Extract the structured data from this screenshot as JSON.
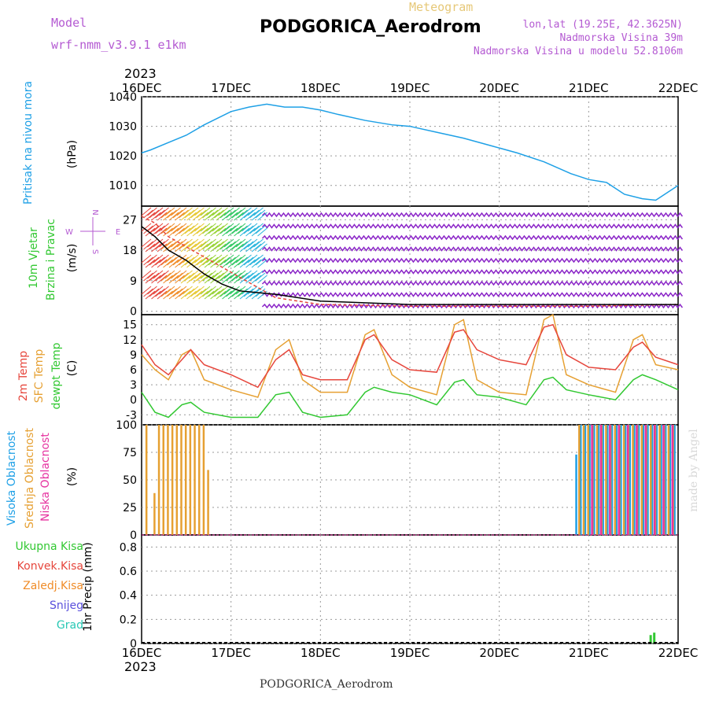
{
  "header": {
    "model_label": "Model",
    "model_name": "wrf-nmm_v3.9.1 e1km",
    "meteogram_label": "Meteogram",
    "station": "PODGORICA_Aerodrom",
    "lonlat": "lon,lat (19.25E, 42.3625N)",
    "elevation": "Nadmorska Visina 39m",
    "model_elevation": "Nadmorska Visina u modelu 52.8106m",
    "year_top": "2023",
    "year_bottom": "2023",
    "footer_station": "PODGORICA_Aerodrom",
    "credit": "made by Angel"
  },
  "time_axis": {
    "labels": [
      "16DEC",
      "17DEC",
      "18DEC",
      "19DEC",
      "20DEC",
      "21DEC",
      "22DEC"
    ]
  },
  "panels": {
    "pressure": {
      "title": "Pritisak na nivou mora",
      "unit": "(hPa)",
      "ticks": [
        "1010",
        "1020",
        "1030",
        "1040"
      ]
    },
    "wind": {
      "title1": "10m Vjetar",
      "title2": "Brzina i Pravac",
      "unit": "(m/s)",
      "ticks": [
        "0",
        "9",
        "18",
        "27"
      ],
      "compass": {
        "n": "N",
        "s": "S",
        "e": "E",
        "w": "W"
      }
    },
    "temp": {
      "title1": "2m Temp",
      "title2": "SFC Temp",
      "title3": "dewpt Temp",
      "unit": "(C)",
      "ticks": [
        "-3",
        "0",
        "3",
        "6",
        "9",
        "12",
        "15"
      ]
    },
    "cloud": {
      "title1": "Visoka Oblacnost",
      "title2": "Srednja Oblacnost",
      "title3": "Niska Oblacnost",
      "unit": "(%)",
      "ticks": [
        "0",
        "25",
        "50",
        "75",
        "100"
      ]
    },
    "precip": {
      "legend": [
        "Ukupna Kisa",
        "Konvek.Kisa",
        "Zaledj.Kisa",
        "Snijeg",
        "Grad"
      ],
      "unit": "1hr Precip (mm)",
      "ticks": [
        "0",
        "0.2",
        "0.4",
        "0.6",
        "0.8"
      ]
    }
  },
  "colors": {
    "pressure": "#1ea0e6",
    "temp2m": "#e6463c",
    "sfc": "#e6a032",
    "dew": "#32c832",
    "high": "#1ea0e6",
    "mid": "#e6a032",
    "low": "#e632a0",
    "rain": "#32c832",
    "conv": "#e6463c",
    "frz": "#f08c28",
    "snow": "#5a50dc",
    "hail": "#28c8b4",
    "header_purple": "#b45ad2",
    "meteogram": "#e6c878"
  },
  "chart_data": [
    {
      "type": "line",
      "panel": "pressure",
      "ylabel": "(hPa)",
      "ylim": [
        1003,
        1040
      ],
      "x_days": [
        0,
        0.1,
        0.3,
        0.5,
        0.7,
        1.0,
        1.2,
        1.4,
        1.6,
        1.8,
        2.0,
        2.2,
        2.5,
        2.8,
        3.0,
        3.3,
        3.6,
        3.9,
        4.2,
        4.5,
        4.8,
        5.0,
        5.2,
        5.4,
        5.6,
        5.75,
        5.9,
        6.0
      ],
      "series": [
        {
          "values": [
            1021,
            1022,
            1024.5,
            1027,
            1030.5,
            1035,
            1036.5,
            1037.5,
            1036.5,
            1036.5,
            1035.5,
            1034,
            1032,
            1030.5,
            1030,
            1028,
            1026,
            1023.5,
            1021,
            1018,
            1014,
            1012,
            1011,
            1007,
            1005.5,
            1005,
            1008,
            1010
          ]
        }
      ]
    },
    {
      "type": "line",
      "panel": "wind",
      "ylabel": "(m/s)",
      "ylim": [
        -1,
        31
      ],
      "x_days": [
        0,
        0.15,
        0.3,
        0.5,
        0.7,
        0.9,
        1.1,
        1.3,
        1.5,
        2.0,
        3.0,
        4.0,
        5.0,
        6.0
      ],
      "series": [
        {
          "values": [
            28,
            26,
            22,
            19,
            16,
            13,
            10,
            7,
            4,
            2,
            1.5,
            1.5,
            1.5,
            2
          ]
        },
        {
          "values": [
            25,
            22,
            18,
            15,
            11,
            8,
            6,
            5.5,
            5,
            3,
            2,
            2,
            2,
            2
          ]
        }
      ]
    },
    {
      "type": "line",
      "panel": "temp",
      "ylabel": "(C)",
      "ylim": [
        -5,
        17
      ],
      "x_days": [
        0,
        0.15,
        0.3,
        0.45,
        0.55,
        0.7,
        1.0,
        1.3,
        1.5,
        1.65,
        1.8,
        2.0,
        2.3,
        2.5,
        2.6,
        2.8,
        3.0,
        3.3,
        3.5,
        3.6,
        3.75,
        4.0,
        4.3,
        4.5,
        4.6,
        4.75,
        5.0,
        5.3,
        5.5,
        5.6,
        5.75,
        6.0
      ],
      "series": [
        {
          "name": "2m Temp",
          "values": [
            11,
            7,
            5,
            8,
            10,
            7,
            5,
            2.5,
            8,
            10,
            5,
            4,
            4,
            12,
            13,
            8,
            6,
            5.5,
            13.5,
            14,
            10,
            8,
            7,
            14.5,
            15,
            9,
            6.5,
            6,
            10.5,
            11.5,
            8.5,
            7
          ]
        },
        {
          "name": "SFC Temp",
          "values": [
            9,
            6,
            4,
            9,
            10,
            4,
            2,
            0.5,
            10,
            12,
            4,
            1.5,
            1.5,
            13,
            14,
            5,
            2.5,
            1,
            15,
            16,
            4,
            1.5,
            1,
            16,
            17,
            5,
            3,
            1.5,
            12,
            13,
            7,
            6
          ]
        },
        {
          "name": "dewpt Temp",
          "values": [
            1.5,
            -2.5,
            -3.5,
            -1,
            -0.5,
            -2.5,
            -3.5,
            -3.5,
            1,
            1.5,
            -2.5,
            -3.5,
            -3,
            1.5,
            2.5,
            1.5,
            1,
            -1,
            3.5,
            4,
            1,
            0.5,
            -1,
            4,
            4.5,
            2,
            1,
            0,
            4,
            5,
            4,
            2
          ]
        }
      ]
    },
    {
      "type": "bar",
      "panel": "cloud",
      "ylabel": "(%)",
      "ylim": [
        0,
        100
      ],
      "series": [
        {
          "name": "Visoka Oblacnost",
          "x_days": [
            4.85,
            4.9,
            4.95,
            5.0,
            5.05,
            5.1,
            5.15,
            5.2,
            5.25,
            5.3,
            5.35,
            5.4,
            5.45,
            5.5,
            5.55,
            5.6,
            5.65,
            5.7,
            5.75,
            5.8,
            5.85,
            5.9,
            5.95
          ],
          "values": [
            73,
            100,
            100,
            100,
            100,
            100,
            100,
            100,
            100,
            100,
            100,
            100,
            100,
            100,
            100,
            100,
            100,
            100,
            100,
            100,
            100,
            100,
            100
          ]
        },
        {
          "name": "Srednja Oblacnost",
          "x_days": [
            0.03,
            0.12,
            0.17,
            0.22,
            0.27,
            0.32,
            0.37,
            0.42,
            0.47,
            0.52,
            0.57,
            0.62,
            0.67,
            0.72,
            4.87,
            4.92,
            4.97,
            5.02,
            5.07,
            5.12,
            5.17,
            5.22,
            5.27,
            5.32,
            5.37,
            5.42,
            5.47,
            5.52,
            5.57,
            5.62,
            5.67,
            5.72,
            5.77,
            5.82,
            5.87,
            5.92
          ],
          "values": [
            100,
            38,
            100,
            100,
            100,
            100,
            100,
            100,
            100,
            100,
            100,
            100,
            100,
            59,
            100,
            100,
            100,
            100,
            100,
            100,
            100,
            100,
            100,
            100,
            100,
            100,
            100,
            100,
            100,
            100,
            100,
            100,
            100,
            100,
            100,
            100
          ]
        },
        {
          "name": "Niska Oblacnost",
          "x_days": [
            5.0,
            5.1,
            5.2,
            5.3,
            5.4,
            5.5,
            5.6,
            5.7,
            5.8,
            5.9
          ],
          "values": [
            100,
            100,
            100,
            100,
            100,
            100,
            100,
            100,
            100,
            100
          ]
        }
      ]
    },
    {
      "type": "bar",
      "panel": "precip",
      "ylabel": "1hr Precip (mm)",
      "ylim": [
        0,
        0.9
      ],
      "series": [
        {
          "name": "Ukupna Kisa",
          "x_days": [
            5.68,
            5.72
          ],
          "values": [
            0.07,
            0.09
          ]
        }
      ]
    }
  ]
}
